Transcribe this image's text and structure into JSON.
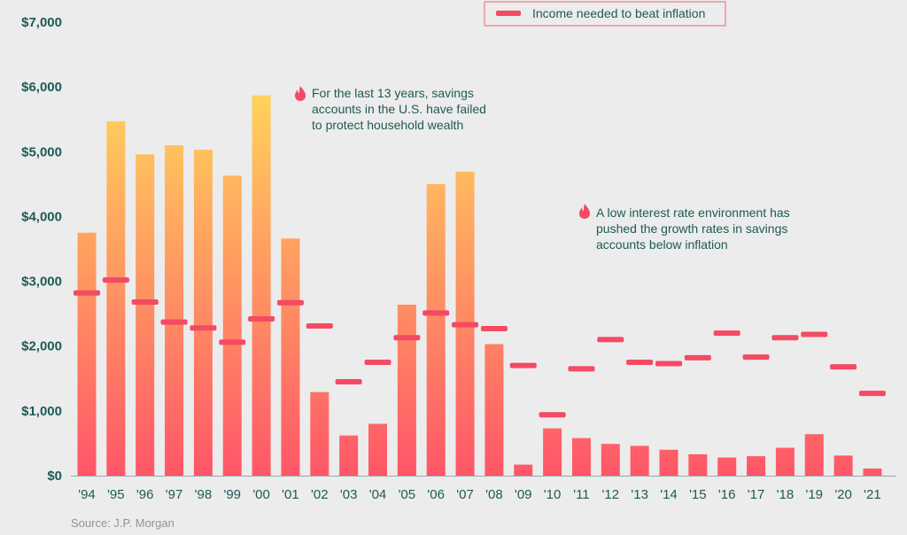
{
  "chart_data": {
    "type": "bar",
    "categories": [
      "'94",
      "'95",
      "'96",
      "'97",
      "'98",
      "'99",
      "'00",
      "'01",
      "'02",
      "'03",
      "'04",
      "'05",
      "'06",
      "'07",
      "'08",
      "'09",
      "'10",
      "'11",
      "'12",
      "'13",
      "'14",
      "'15",
      "'16",
      "'17",
      "'18",
      "'19",
      "'20",
      "'21"
    ],
    "series": [
      {
        "name": "",
        "type": "bar",
        "values": [
          3750,
          5470,
          4960,
          5100,
          5030,
          4630,
          5870,
          3660,
          1290,
          620,
          800,
          2640,
          4500,
          4690,
          2030,
          170,
          730,
          580,
          490,
          460,
          400,
          330,
          280,
          300,
          430,
          640,
          310,
          110
        ]
      },
      {
        "name": "Income needed to beat inflation",
        "type": "marker",
        "values": [
          2820,
          3020,
          2680,
          2370,
          2280,
          2060,
          2420,
          2670,
          2310,
          1450,
          1750,
          2130,
          2510,
          2330,
          2270,
          1700,
          940,
          1650,
          2100,
          1750,
          1730,
          1820,
          2200,
          1830,
          2130,
          2180,
          1680,
          1270
        ]
      }
    ],
    "ylim": [
      0,
      7000
    ],
    "yticks": [
      "$0",
      "$1,000",
      "$2,000",
      "$3,000",
      "$4,000",
      "$5,000",
      "$6,000",
      "$7,000"
    ],
    "colors": {
      "bar_top": "#ffd35c",
      "bar_bottom": "#ff5668",
      "marker": "#f44a63",
      "text": "#1d5a55",
      "legend_border": "#f07a86"
    },
    "legend": {
      "label": "Income needed to beat inflation",
      "position": "top-center"
    },
    "annotations": [
      {
        "icon": "flame-icon",
        "lines": [
          "For the last 13 years, savings",
          "accounts in the U.S. have failed",
          "to protect household wealth"
        ]
      },
      {
        "icon": "flame-icon",
        "lines": [
          "A low interest rate environment has",
          "pushed the growth rates in savings",
          "accounts below inflation"
        ]
      }
    ],
    "source": "Source: J.P. Morgan"
  }
}
